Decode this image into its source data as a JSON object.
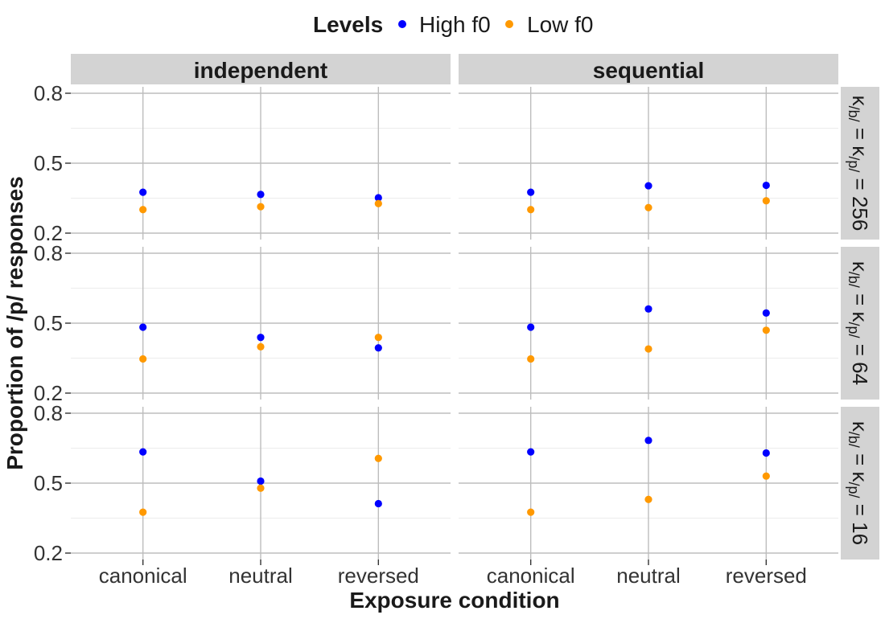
{
  "chart_data": {
    "type": "scatter",
    "xlabel": "Exposure condition",
    "ylabel": "Proportion of /p/ responses",
    "categories": [
      "canonical",
      "neutral",
      "reversed"
    ],
    "ylim": [
      0.2,
      0.8
    ],
    "yticks": [
      0.2,
      0.5,
      0.8
    ],
    "y_scale": "logit",
    "grid": true,
    "legend": {
      "title": "Levels",
      "position": "top",
      "entries": [
        {
          "name": "High f0",
          "color": "#0000ff"
        },
        {
          "name": "Low f0",
          "color": "#ff9900"
        }
      ]
    },
    "columns": [
      "independent",
      "sequential"
    ],
    "rows": [
      {
        "pre": "κ",
        "sub1": "/b/",
        "mid": " = κ",
        "sub2": "/p/",
        "post": " = 256"
      },
      {
        "pre": "κ",
        "sub1": "/b/",
        "mid": " = κ",
        "sub2": "/p/",
        "post": " = 64"
      },
      {
        "pre": "κ",
        "sub1": "/b/",
        "mid": " = κ",
        "sub2": "/p/",
        "post": " = 16"
      }
    ],
    "panels": [
      {
        "row": 0,
        "col": 0,
        "series": [
          {
            "name": "High f0",
            "values": [
              0.36,
              0.35,
              0.335
            ]
          },
          {
            "name": "Low f0",
            "values": [
              0.285,
              0.297,
              0.31
            ]
          }
        ]
      },
      {
        "row": 0,
        "col": 1,
        "series": [
          {
            "name": "High f0",
            "values": [
              0.36,
              0.39,
              0.392
            ]
          },
          {
            "name": "Low f0",
            "values": [
              0.285,
              0.293,
              0.322
            ]
          }
        ]
      },
      {
        "row": 1,
        "col": 0,
        "series": [
          {
            "name": "High f0",
            "values": [
              0.48,
              0.43,
              0.38
            ]
          },
          {
            "name": "Low f0",
            "values": [
              0.33,
              0.385,
              0.43
            ]
          }
        ]
      },
      {
        "row": 1,
        "col": 1,
        "series": [
          {
            "name": "High f0",
            "values": [
              0.48,
              0.57,
              0.55
            ]
          },
          {
            "name": "Low f0",
            "values": [
              0.33,
              0.375,
              0.465
            ]
          }
        ]
      },
      {
        "row": 2,
        "col": 0,
        "series": [
          {
            "name": "High f0",
            "values": [
              0.65,
              0.51,
              0.4
            ]
          },
          {
            "name": "Low f0",
            "values": [
              0.36,
              0.475,
              0.62
            ]
          }
        ]
      },
      {
        "row": 2,
        "col": 1,
        "series": [
          {
            "name": "High f0",
            "values": [
              0.65,
              0.7,
              0.645
            ]
          },
          {
            "name": "Low f0",
            "values": [
              0.36,
              0.42,
              0.535
            ]
          }
        ]
      }
    ]
  }
}
